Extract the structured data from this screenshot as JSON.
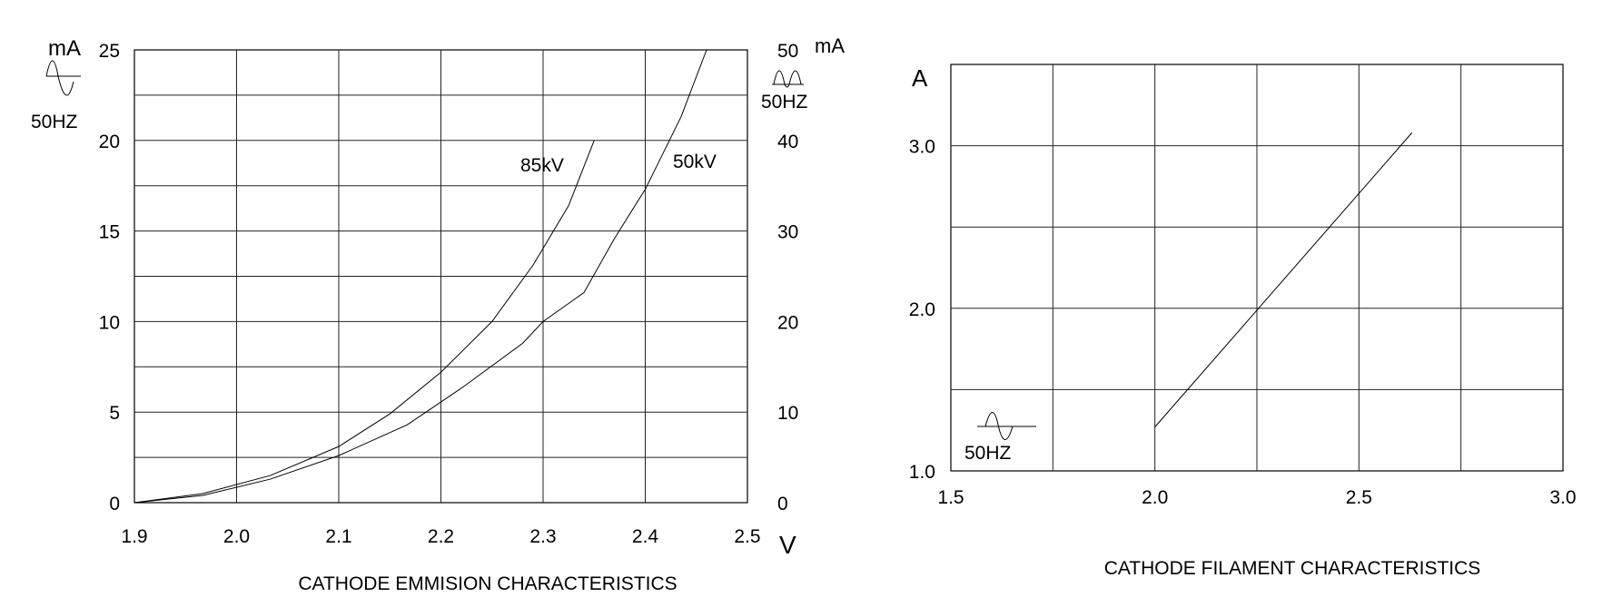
{
  "chart_data": [
    {
      "type": "line",
      "title": "CATHODE EMMISION CHARACTERISTICS",
      "xlabel": "V",
      "ylabel": "mA",
      "ylabel_right": "mA",
      "xlim": [
        1.9,
        2.5
      ],
      "ylim": [
        0,
        25
      ],
      "ylim_right": [
        0,
        50
      ],
      "x_ticks": [
        "1.9",
        "2.0",
        "2.1",
        "2.2",
        "2.3",
        "2.4",
        "2.5"
      ],
      "y_ticks": [
        "0",
        "5",
        "10",
        "15",
        "20",
        "25"
      ],
      "y_ticks_right": [
        "0",
        "10",
        "20",
        "30",
        "40",
        "50"
      ],
      "y_minor_step": 2.5,
      "grid": true,
      "left_symbol": {
        "icon": "sine-wave-icon",
        "label": "50HZ"
      },
      "right_symbol": {
        "icon": "rectified-wave-icon",
        "label": "50HZ"
      },
      "series": [
        {
          "name": "85kV",
          "x": [
            1.9,
            1.967,
            2.033,
            2.1,
            2.15,
            2.2,
            2.25,
            2.29,
            2.325,
            2.35
          ],
          "y": [
            0,
            0.5,
            1.5,
            3.1,
            4.9,
            7.2,
            10.0,
            13.1,
            16.4,
            20.0
          ]
        },
        {
          "name": "50kV",
          "x": [
            1.9,
            1.967,
            2.033,
            2.1,
            2.167,
            2.222,
            2.28,
            2.3,
            2.34,
            2.37,
            2.4,
            2.435,
            2.46
          ],
          "y": [
            0,
            0.4,
            1.3,
            2.6,
            4.3,
            6.4,
            8.8,
            10.0,
            11.6,
            14.6,
            17.3,
            21.3,
            25.0
          ]
        }
      ]
    },
    {
      "type": "line",
      "title": "CATHODE FILAMENT CHARACTERISTICS",
      "ylabel": "A",
      "xlim": [
        1.5,
        3.0
      ],
      "ylim": [
        1.0,
        3.5
      ],
      "x_ticks": [
        "1.5",
        "2.0",
        "2.5",
        "3.0"
      ],
      "y_ticks": [
        "1.0",
        "2.0",
        "3.0"
      ],
      "x_grid_step": 0.25,
      "y_grid_step": 0.5,
      "grid": true,
      "symbol": {
        "icon": "sine-wave-icon",
        "label": "50HZ"
      },
      "series": [
        {
          "x": [
            2.0,
            2.63
          ],
          "y": [
            1.27,
            3.08
          ]
        }
      ]
    }
  ]
}
